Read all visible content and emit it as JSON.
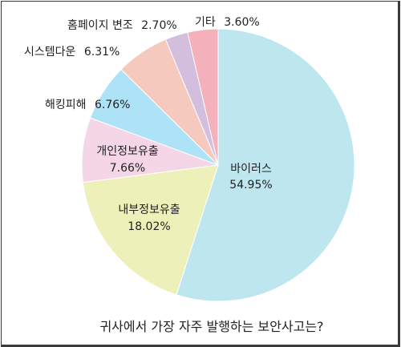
{
  "chart_data": {
    "type": "pie",
    "title": "귀사에서 가장 자주 발행하는 보안사고는?",
    "start": "12 o'clock",
    "direction": "clockwise",
    "slices": [
      {
        "name": "바이러스",
        "value": 54.95,
        "label": "54.95%",
        "color": "#bde6ef"
      },
      {
        "name": "내부정보유출",
        "value": 18.02,
        "label": "18.02%",
        "color": "#edf0b8"
      },
      {
        "name": "개인정보유출",
        "value": 7.66,
        "label": "7.66%",
        "color": "#f4d6e6"
      },
      {
        "name": "해킹피해",
        "value": 6.76,
        "label": "6.76%",
        "color": "#aee2f7"
      },
      {
        "name": "시스템다운",
        "value": 6.31,
        "label": "6.31%",
        "color": "#f5c9bd"
      },
      {
        "name": "홈페이지 변조",
        "value": 2.7,
        "label": "2.70%",
        "color": "#d3bede"
      },
      {
        "name": "기타",
        "value": 3.6,
        "label": "3.60%",
        "color": "#f4b1bb"
      }
    ]
  }
}
